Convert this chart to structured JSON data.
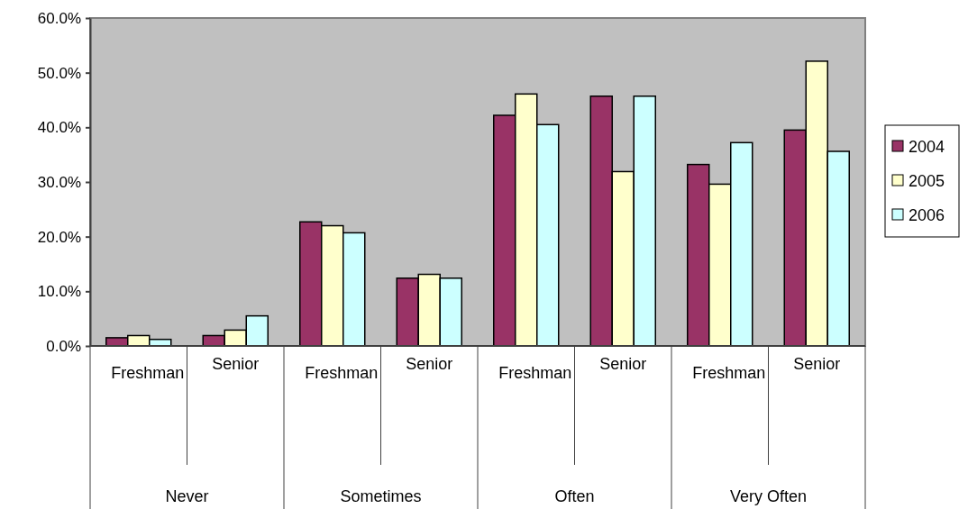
{
  "chart_data": {
    "type": "bar",
    "categories": [
      "Freshman",
      "Senior",
      "Freshman",
      "Senior",
      "Freshman",
      "Senior",
      "Freshman",
      "Senior"
    ],
    "annotations": [
      "Never",
      "Sometimes",
      "Often",
      "Very Often"
    ],
    "series": [
      {
        "name": "2004",
        "color": "#993366",
        "values": [
          1.5,
          1.9,
          22.7,
          12.4,
          42.2,
          45.7,
          33.2,
          39.5
        ]
      },
      {
        "name": "2005",
        "color": "#ffffcc",
        "values": [
          1.9,
          2.9,
          22.0,
          13.1,
          46.1,
          31.9,
          29.6,
          52.1
        ]
      },
      {
        "name": "2006",
        "color": "#ccffff",
        "values": [
          1.2,
          5.5,
          20.7,
          12.4,
          40.5,
          45.7,
          37.2,
          35.6
        ]
      }
    ],
    "ylim": [
      0,
      60
    ],
    "yticks": [
      {
        "value": 0,
        "label": "0.0%"
      },
      {
        "value": 10,
        "label": "10.0%"
      },
      {
        "value": 20,
        "label": "20.0%"
      },
      {
        "value": 30,
        "label": "30.0%"
      },
      {
        "value": 40,
        "label": "40.0%"
      },
      {
        "value": 50,
        "label": "50.0%"
      },
      {
        "value": 60,
        "label": "60.0%"
      }
    ],
    "legend": "right"
  }
}
